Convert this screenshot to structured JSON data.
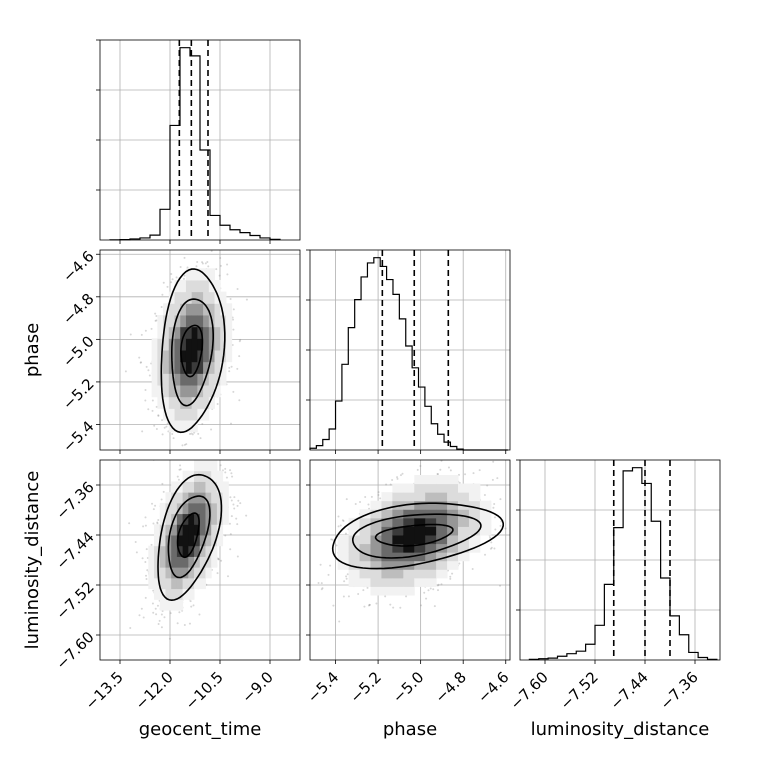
{
  "chart_data": {
    "type": "corner",
    "grid": true,
    "parameters": [
      {
        "name": "geocent_time",
        "label": "geocent_time",
        "range": [
          -14.1,
          -8.1
        ],
        "ticks": [
          -13.5,
          -12.0,
          -10.5,
          -9.0
        ],
        "tick_labels": [
          "−13.5",
          "−12.0",
          "−10.5",
          "−9.0"
        ],
        "quantiles": [
          -11.72,
          -11.36,
          -10.86
        ],
        "hist_edges": [
          -13.8,
          -13.5,
          -13.2,
          -12.9,
          -12.6,
          -12.3,
          -12.0,
          -11.7,
          -11.4,
          -11.1,
          -10.8,
          -10.5,
          -10.2,
          -9.9,
          -9.6,
          -9.3,
          -9.0,
          -8.7
        ],
        "hist_counts": [
          1,
          2,
          5,
          10,
          24,
          150,
          560,
          940,
          900,
          440,
          120,
          72,
          50,
          36,
          22,
          10,
          3
        ]
      },
      {
        "name": "phase",
        "label": "phase",
        "range": [
          -5.52,
          -4.58
        ],
        "ticks": [
          -5.4,
          -5.2,
          -5.0,
          -4.8,
          -4.6
        ],
        "tick_labels": [
          "−5.4",
          "−5.2",
          "−5.0",
          "−4.8",
          "−4.6"
        ],
        "quantiles": [
          -5.18,
          -5.03,
          -4.87
        ],
        "hist_edges": [
          -5.52,
          -5.49,
          -5.46,
          -5.43,
          -5.4,
          -5.37,
          -5.34,
          -5.31,
          -5.28,
          -5.25,
          -5.22,
          -5.19,
          -5.16,
          -5.13,
          -5.1,
          -5.07,
          -5.04,
          -5.01,
          -4.98,
          -4.95,
          -4.92,
          -4.89,
          -4.86,
          -4.83,
          -4.8,
          -4.77,
          -4.74,
          -4.71,
          -4.68,
          -4.65,
          -4.62,
          -4.59
        ],
        "hist_counts": [
          2,
          5,
          12,
          24,
          56,
          98,
          140,
          172,
          198,
          214,
          220,
          210,
          195,
          178,
          150,
          119,
          94,
          72,
          50,
          30,
          18,
          9,
          4,
          1,
          0,
          0,
          0,
          0,
          0,
          0,
          0
        ]
      },
      {
        "name": "luminosity_distance",
        "label": "luminosity_distance",
        "range": [
          -7.64,
          -7.32
        ],
        "ticks": [
          -7.6,
          -7.52,
          -7.44,
          -7.36
        ],
        "tick_labels": [
          "−7.60",
          "−7.52",
          "−7.44",
          "−7.36"
        ],
        "quantiles": [
          -7.49,
          -7.44,
          -7.4
        ],
        "hist_edges": [
          -7.625,
          -7.61,
          -7.595,
          -7.58,
          -7.565,
          -7.55,
          -7.535,
          -7.52,
          -7.505,
          -7.49,
          -7.475,
          -7.46,
          -7.445,
          -7.43,
          -7.415,
          -7.4,
          -7.385,
          -7.37,
          -7.355,
          -7.34,
          -7.325
        ],
        "hist_counts": [
          1,
          2,
          3,
          6,
          10,
          14,
          25,
          55,
          120,
          210,
          300,
          305,
          280,
          220,
          130,
          70,
          40,
          12,
          4,
          1
        ]
      }
    ],
    "contour_levels": [
      0.39,
      0.86,
      0.99
    ],
    "pair_panels": [
      {
        "x": "geocent_time",
        "y": "phase",
        "center": [
          -11.35,
          -5.05
        ],
        "sigma": [
          0.5,
          0.16
        ],
        "correlation": 0.2,
        "contours": [
          {
            "level": 0.39,
            "half_width": [
              0.32,
              0.12
            ]
          },
          {
            "level": 0.86,
            "half_width": [
              0.62,
              0.25
            ]
          },
          {
            "level": 0.99,
            "half_width": [
              0.95,
              0.38
            ]
          }
        ]
      },
      {
        "x": "geocent_time",
        "y": "luminosity_distance",
        "center": [
          -11.45,
          -7.44
        ],
        "sigma": [
          0.5,
          0.05
        ],
        "correlation": 0.45,
        "contours": [
          {
            "level": 0.39,
            "half_width": [
              0.32,
              0.035
            ]
          },
          {
            "level": 0.86,
            "half_width": [
              0.62,
              0.065
            ]
          },
          {
            "level": 0.99,
            "half_width": [
              0.95,
              0.1
            ]
          }
        ]
      },
      {
        "x": "phase",
        "y": "luminosity_distance",
        "center": [
          -5.03,
          -7.44
        ],
        "sigma": [
          0.15,
          0.04
        ],
        "correlation": 0.35,
        "contours": [
          {
            "level": 0.39,
            "half_width": [
              0.18,
              0.017
            ]
          },
          {
            "level": 0.86,
            "half_width": [
              0.3,
              0.035
            ]
          },
          {
            "level": 0.99,
            "half_width": [
              0.4,
              0.052
            ]
          }
        ]
      }
    ]
  }
}
